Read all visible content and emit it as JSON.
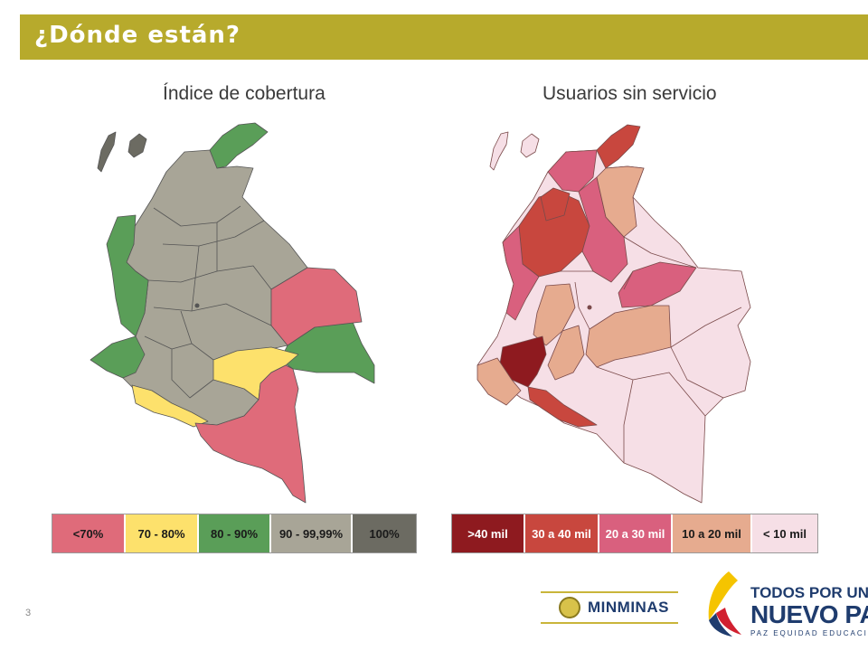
{
  "header": {
    "title": "¿Dónde están?"
  },
  "slide_number": "3",
  "colors": {
    "header_bar": "#b7aa2c",
    "coverage_lt70": "#df6b7a",
    "coverage_70_80": "#fde16c",
    "coverage_80_90": "#5a9e58",
    "coverage_90_9999": "#a8a597",
    "coverage_100": "#6c6b62",
    "users_gt40": "#8e1a1f",
    "users_30_40": "#c8473e",
    "users_20_30": "#d9607e",
    "users_10_20": "#e6ab8f",
    "users_lt10": "#f6dfe6"
  },
  "maps": [
    {
      "title": "Índice de cobertura",
      "legend": [
        "<70%",
        "70 - 80%",
        "80 - 90%",
        "90 - 99,99%",
        "100%"
      ]
    },
    {
      "title": "Usuarios sin servicio",
      "legend": [
        ">40 mil",
        "30 a 40 mil",
        "20 a 30 mil",
        "10 a  20 mil",
        "< 10 mil"
      ]
    }
  ],
  "logos": {
    "minminas": "MINMINAS",
    "tpunp_line1": "TODOS POR UN",
    "tpunp_line2": "NUEVO PAÍS",
    "tpunp_line3": "PAZ  EQUIDAD  EDUCACIÓN"
  }
}
